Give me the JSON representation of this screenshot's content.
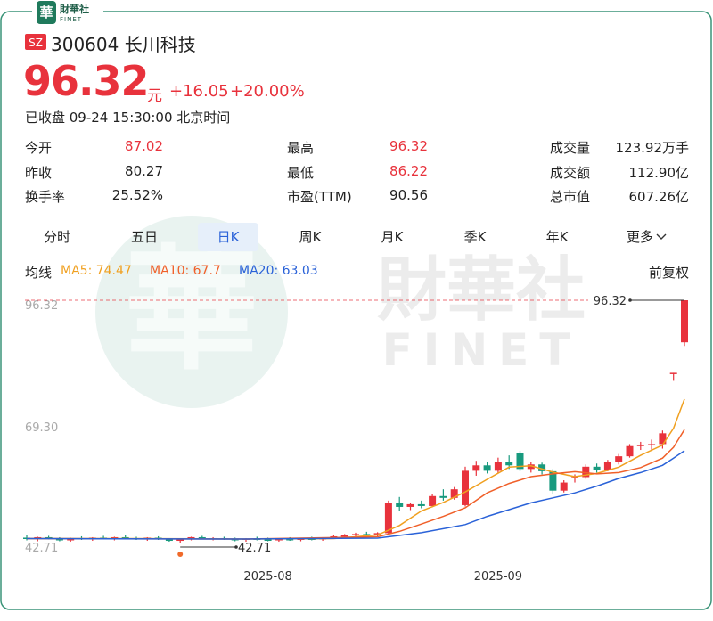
{
  "logo": {
    "mark": "華",
    "name": "財華社",
    "sub": "FINET"
  },
  "stock": {
    "exchange": "SZ",
    "title": "300604 长川科技",
    "price": "96.32",
    "unit": "元",
    "change": "+16.05",
    "change_pct": "+20.00%",
    "status": "已收盘 09-24 15:30:00 北京时间"
  },
  "stats": [
    [
      {
        "label": "今开",
        "value": "87.02",
        "up": true
      },
      {
        "label": "最高",
        "value": "96.32",
        "up": true
      },
      {
        "label": "成交量",
        "value": "123.92万手"
      }
    ],
    [
      {
        "label": "昨收",
        "value": "80.27"
      },
      {
        "label": "最低",
        "value": "86.22",
        "up": true
      },
      {
        "label": "成交额",
        "value": "112.90亿"
      }
    ],
    [
      {
        "label": "换手率",
        "value": "25.52%"
      },
      {
        "label": "市盈(TTM)",
        "value": "90.56"
      },
      {
        "label": "总市值",
        "value": "607.26亿"
      }
    ]
  ],
  "tabs": [
    "分时",
    "五日",
    "日K",
    "周K",
    "月K",
    "季K",
    "年K",
    "更多"
  ],
  "active_tab": 2,
  "ma_title": "均线",
  "adjust": "前复权",
  "watermark": {
    "cn": "財華社",
    "en": "FINET"
  },
  "chart_data": {
    "type": "candlestick",
    "up_color": "#e8323c",
    "down_color": "#189a7e",
    "xlim": [
      0,
      60
    ],
    "ylim": [
      42.71,
      96.32
    ],
    "yticks": [
      96.32,
      {
        "value": 69.3,
        "label": "69.30"
      },
      42.71
    ],
    "xticks": [
      {
        "value": 22,
        "label": "2025-08"
      },
      {
        "value": 43,
        "label": "2025-09"
      }
    ],
    "max_label": 96.32,
    "min_label": 42.71,
    "ohlc": [
      [
        43.8,
        44.3,
        43.2,
        43.5
      ],
      [
        43.5,
        44.0,
        43.0,
        43.9
      ],
      [
        43.9,
        44.2,
        43.4,
        43.6
      ],
      [
        43.6,
        43.9,
        43.0,
        43.2
      ],
      [
        43.2,
        43.8,
        42.9,
        43.7
      ],
      [
        43.7,
        44.1,
        43.3,
        43.4
      ],
      [
        43.4,
        43.9,
        43.1,
        43.8
      ],
      [
        43.8,
        44.2,
        43.4,
        43.6
      ],
      [
        43.6,
        44.0,
        43.2,
        43.9
      ],
      [
        43.9,
        44.3,
        43.5,
        43.7
      ],
      [
        43.7,
        44.0,
        43.3,
        43.5
      ],
      [
        43.5,
        43.9,
        43.1,
        43.8
      ],
      [
        43.8,
        44.1,
        43.3,
        43.4
      ],
      [
        43.4,
        43.7,
        42.9,
        43.1
      ],
      [
        43.1,
        43.6,
        42.71,
        43.4
      ],
      [
        43.4,
        44.0,
        43.2,
        43.9
      ],
      [
        43.9,
        44.2,
        43.5,
        43.6
      ],
      [
        43.6,
        43.9,
        43.2,
        43.7
      ],
      [
        43.7,
        44.0,
        43.3,
        43.5
      ],
      [
        43.5,
        43.8,
        43.0,
        43.3
      ],
      [
        43.3,
        43.7,
        42.9,
        43.6
      ],
      [
        43.6,
        44.0,
        43.2,
        43.4
      ],
      [
        43.4,
        43.8,
        43.0,
        43.2
      ],
      [
        43.2,
        43.6,
        42.9,
        43.5
      ],
      [
        43.5,
        43.9,
        43.1,
        43.3
      ],
      [
        43.3,
        43.7,
        43.0,
        43.6
      ],
      [
        43.6,
        44.0,
        43.2,
        43.4
      ],
      [
        43.4,
        43.9,
        43.1,
        43.8
      ],
      [
        43.8,
        44.3,
        43.5,
        44.1
      ],
      [
        44.1,
        44.6,
        43.8,
        44.3
      ],
      [
        44.3,
        44.9,
        44.0,
        44.6
      ],
      [
        44.6,
        45.1,
        44.2,
        44.5
      ],
      [
        44.5,
        45.0,
        44.0,
        44.8
      ],
      [
        44.8,
        52.0,
        44.5,
        51.4
      ],
      [
        51.4,
        52.8,
        49.8,
        50.6
      ],
      [
        50.6,
        51.5,
        49.9,
        51.2
      ],
      [
        51.2,
        52.0,
        50.3,
        50.8
      ],
      [
        50.8,
        53.5,
        50.5,
        53.0
      ],
      [
        53.0,
        54.5,
        52.0,
        52.6
      ],
      [
        52.6,
        55.0,
        52.2,
        54.5
      ],
      [
        51.0,
        59.5,
        50.7,
        58.6
      ],
      [
        58.6,
        60.8,
        57.5,
        59.8
      ],
      [
        59.8,
        60.5,
        58.0,
        58.6
      ],
      [
        58.6,
        61.5,
        58.0,
        60.5
      ],
      [
        60.5,
        62.0,
        59.0,
        59.8
      ],
      [
        62.6,
        63.0,
        58.5,
        59.0
      ],
      [
        59.0,
        60.5,
        58.2,
        60.0
      ],
      [
        60.0,
        60.4,
        57.8,
        58.5
      ],
      [
        58.5,
        59.0,
        53.5,
        54.2
      ],
      [
        54.2,
        56.5,
        53.8,
        56.0
      ],
      [
        57.0,
        57.8,
        56.0,
        57.2
      ],
      [
        57.2,
        60.0,
        56.8,
        59.5
      ],
      [
        59.5,
        60.2,
        58.2,
        58.8
      ],
      [
        58.8,
        61.0,
        58.5,
        60.5
      ],
      [
        60.5,
        62.3,
        60.0,
        61.8
      ],
      [
        61.8,
        64.5,
        61.5,
        64.05
      ],
      [
        64.05,
        65.0,
        63.2,
        64.37
      ],
      [
        64.37,
        65.5,
        63.0,
        64.5
      ],
      [
        64.5,
        67.5,
        63.5,
        66.89
      ],
      [
        80.27,
        80.27,
        78.5,
        80.27
      ],
      [
        87.02,
        96.32,
        86.22,
        96.32
      ]
    ],
    "series": [
      {
        "name": "MA5: 74.47",
        "color": "#f0a020",
        "x": [
          0,
          10,
          20,
          28,
          32,
          34,
          36,
          38,
          40,
          42,
          44,
          46,
          48,
          50,
          52,
          54,
          56,
          58,
          59,
          60
        ],
        "values": [
          43.6,
          43.6,
          43.5,
          43.6,
          44.4,
          46.5,
          49.7,
          51.6,
          53.9,
          56.7,
          59.4,
          59.7,
          58.3,
          57.3,
          58.0,
          59.4,
          62.0,
          64.3,
          68.0,
          74.47
        ]
      },
      {
        "name": "MA10: 67.7",
        "color": "#f0602a",
        "x": [
          0,
          20,
          32,
          34,
          36,
          38,
          40,
          42,
          44,
          46,
          48,
          50,
          52,
          54,
          56,
          58,
          59,
          60
        ],
        "values": [
          43.6,
          43.5,
          44.0,
          45.2,
          46.8,
          48.5,
          50.4,
          53.7,
          55.8,
          57.3,
          57.9,
          58.4,
          57.9,
          58.2,
          59.3,
          61.4,
          63.8,
          67.7
        ]
      },
      {
        "name": "MA20: 63.03",
        "color": "#2a62d8",
        "x": [
          0,
          20,
          32,
          36,
          40,
          42,
          44,
          46,
          48,
          50,
          52,
          54,
          56,
          58,
          59,
          60
        ],
        "values": [
          43.6,
          43.5,
          43.7,
          44.9,
          46.7,
          48.5,
          50.0,
          51.5,
          52.6,
          53.7,
          55.2,
          56.9,
          58.2,
          59.8,
          61.4,
          63.03
        ]
      }
    ]
  }
}
